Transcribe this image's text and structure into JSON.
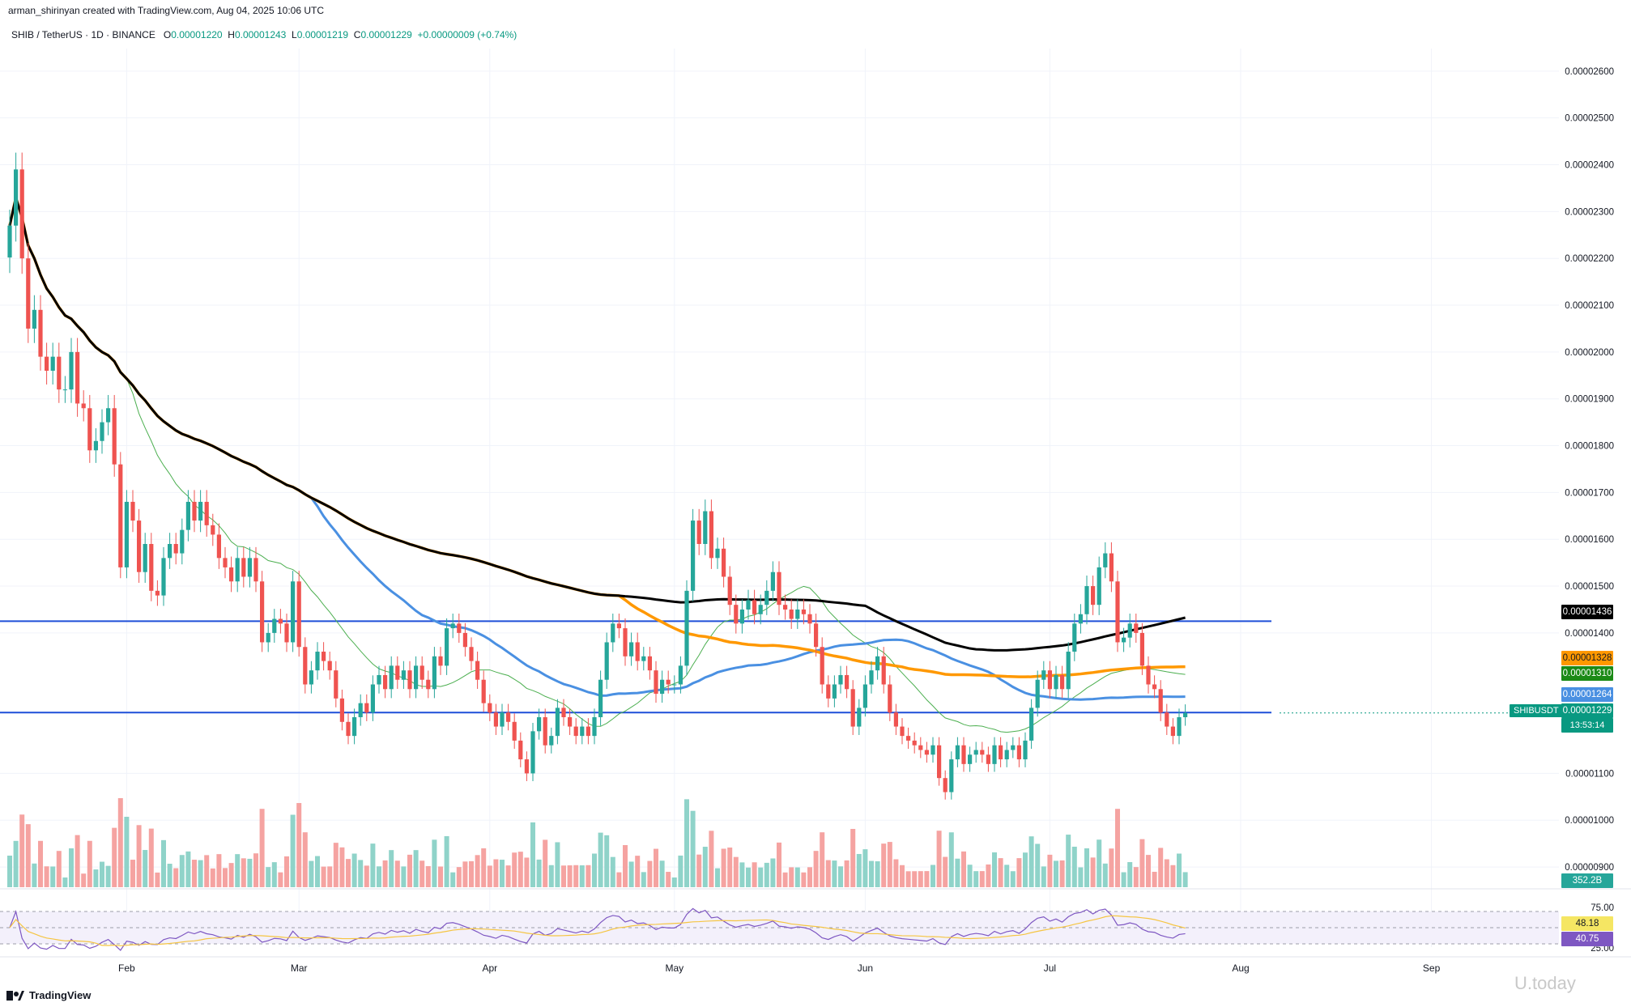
{
  "header": {
    "created_by": "arman_shirinyan created with TradingView.com, Aug 04, 2025 10:06 UTC"
  },
  "symbol": {
    "name": "SHIB / TetherUS · 1D · BINANCE",
    "open_label": "O",
    "open": "0.00001220",
    "high_label": "H",
    "high": "0.00001243",
    "low_label": "L",
    "low": "0.00001219",
    "close_label": "C",
    "close": "0.00001229",
    "change": "+0.00000009 (+0.74%)"
  },
  "tags": {
    "ma200": "0.00001436",
    "ma100": "0.00001328",
    "ma20": "0.00001310",
    "ma50": "0.00001264",
    "ticker": "SHIBUSDT",
    "price": "0.00001229",
    "countdown": "13:53:14",
    "volume": "352.2B",
    "rsi_ma": "48.18",
    "rsi": "40.75"
  },
  "colors": {
    "up": "#26a69a",
    "down": "#ef5350",
    "ma200": "#000000",
    "ma100": "#ff9800",
    "ma50": "#4a90e2",
    "ma20": "#4caf50",
    "rsi": "#7e57c2",
    "rsi_ma": "#f5c542",
    "hline": "#1e4fd8"
  },
  "footer": {
    "brand": "TradingView",
    "watermark": "U.today"
  },
  "chart_data": {
    "type": "candlestick",
    "price_axis": {
      "ticks": [
        "0.00002600",
        "0.00002500",
        "0.00002400",
        "0.00002300",
        "0.00002200",
        "0.00002100",
        "0.00002000",
        "0.00001900",
        "0.00001800",
        "0.00001700",
        "0.00001600",
        "0.00001500",
        "0.00001400",
        "0.00001100",
        "0.00001000",
        "0.00000900"
      ],
      "range": [
        8.5e-06,
        2.7e-05
      ]
    },
    "time_axis": [
      "Feb",
      "Mar",
      "Apr",
      "May",
      "Jun",
      "Jul",
      "Aug",
      "Sep"
    ],
    "horizontal_levels": [
      1.425e-05,
      1.23e-05
    ],
    "close": [
      2.27e-05,
      2.39e-05,
      2.2e-05,
      2.05e-05,
      2.09e-05,
      1.99e-05,
      1.96e-05,
      1.99e-05,
      1.92e-05,
      1.92e-05,
      2e-05,
      1.89e-05,
      1.88e-05,
      1.79e-05,
      1.81e-05,
      1.85e-05,
      1.88e-05,
      1.76e-05,
      1.54e-05,
      1.68e-05,
      1.64e-05,
      1.53e-05,
      1.59e-05,
      1.49e-05,
      1.48e-05,
      1.56e-05,
      1.59e-05,
      1.57e-05,
      1.62e-05,
      1.68e-05,
      1.64e-05,
      1.68e-05,
      1.63e-05,
      1.61e-05,
      1.56e-05,
      1.54e-05,
      1.51e-05,
      1.56e-05,
      1.52e-05,
      1.56e-05,
      1.51e-05,
      1.38e-05,
      1.4e-05,
      1.43e-05,
      1.42e-05,
      1.38e-05,
      1.51e-05,
      1.37e-05,
      1.29e-05,
      1.32e-05,
      1.36e-05,
      1.34e-05,
      1.32e-05,
      1.26e-05,
      1.21e-05,
      1.18e-05,
      1.22e-05,
      1.25e-05,
      1.23e-05,
      1.29e-05,
      1.31e-05,
      1.28e-05,
      1.33e-05,
      1.3e-05,
      1.32e-05,
      1.28e-05,
      1.33e-05,
      1.3e-05,
      1.28e-05,
      1.35e-05,
      1.33e-05,
      1.41e-05,
      1.42e-05,
      1.4e-05,
      1.37e-05,
      1.34e-05,
      1.3e-05,
      1.25e-05,
      1.23e-05,
      1.2e-05,
      1.23e-05,
      1.21e-05,
      1.17e-05,
      1.13e-05,
      1.1e-05,
      1.19e-05,
      1.22e-05,
      1.16e-05,
      1.18e-05,
      1.24e-05,
      1.22e-05,
      1.2e-05,
      1.18e-05,
      1.2e-05,
      1.18e-05,
      1.22e-05,
      1.3e-05,
      1.38e-05,
      1.42e-05,
      1.41e-05,
      1.35e-05,
      1.38e-05,
      1.34e-05,
      1.35e-05,
      1.32e-05,
      1.27e-05,
      1.3e-05,
      1.29e-05,
      1.29e-05,
      1.33e-05,
      1.49e-05,
      1.64e-05,
      1.59e-05,
      1.66e-05,
      1.56e-05,
      1.58e-05,
      1.52e-05,
      1.46e-05,
      1.42e-05,
      1.45e-05,
      1.47e-05,
      1.44e-05,
      1.46e-05,
      1.49e-05,
      1.53e-05,
      1.46e-05,
      1.45e-05,
      1.43e-05,
      1.45e-05,
      1.44e-05,
      1.42e-05,
      1.37e-05,
      1.29e-05,
      1.26e-05,
      1.29e-05,
      1.31e-05,
      1.28e-05,
      1.2e-05,
      1.24e-05,
      1.29e-05,
      1.32e-05,
      1.35e-05,
      1.29e-05,
      1.23e-05,
      1.2e-05,
      1.18e-05,
      1.17e-05,
      1.16e-05,
      1.15e-05,
      1.14e-05,
      1.16e-05,
      1.09e-05,
      1.06e-05,
      1.13e-05,
      1.16e-05,
      1.12e-05,
      1.14e-05,
      1.15e-05,
      1.14e-05,
      1.12e-05,
      1.16e-05,
      1.13e-05,
      1.15e-05,
      1.16e-05,
      1.13e-05,
      1.17e-05,
      1.24e-05,
      1.3e-05,
      1.32e-05,
      1.28e-05,
      1.31e-05,
      1.28e-05,
      1.36e-05,
      1.42e-05,
      1.44e-05,
      1.5e-05,
      1.46e-05,
      1.54e-05,
      1.57e-05,
      1.51e-05,
      1.38e-05,
      1.39e-05,
      1.42e-05,
      1.4e-05,
      1.33e-05,
      1.29e-05,
      1.28e-05,
      1.23e-05,
      1.2e-05,
      1.18e-05,
      1.22e-05,
      1.229e-05
    ],
    "series": [
      {
        "name": "MA200",
        "last": 1.436e-05
      },
      {
        "name": "MA100",
        "last": 1.328e-05
      },
      {
        "name": "MA20",
        "last": 1.31e-05
      },
      {
        "name": "MA50",
        "last": 1.264e-05
      }
    ],
    "volume_last": "352.2B",
    "rsi": {
      "ticks": [
        "75.00",
        "25.00"
      ],
      "levels": [
        70,
        50,
        30
      ],
      "range": [
        20,
        80
      ],
      "last": 40.75,
      "ma_last": 48.18
    }
  }
}
